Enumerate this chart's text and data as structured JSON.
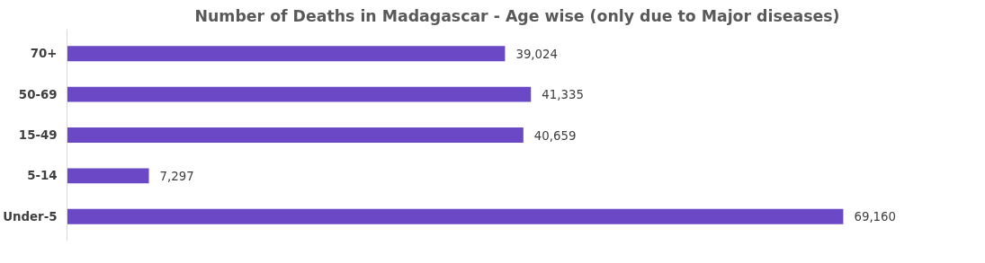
{
  "chart_data": {
    "type": "bar",
    "orientation": "horizontal",
    "title": "Number of Deaths in Madagascar - Age wise (only due to Major diseases)",
    "categories": [
      "70+",
      "50-69",
      "15-49",
      "5-14",
      "Under-5"
    ],
    "values": [
      39024,
      41335,
      40659,
      7297,
      69160
    ],
    "value_labels": [
      "39,024",
      "41,335",
      "40,659",
      "7,297",
      "69,160"
    ],
    "color": "#6a48c6",
    "grid": false
  }
}
